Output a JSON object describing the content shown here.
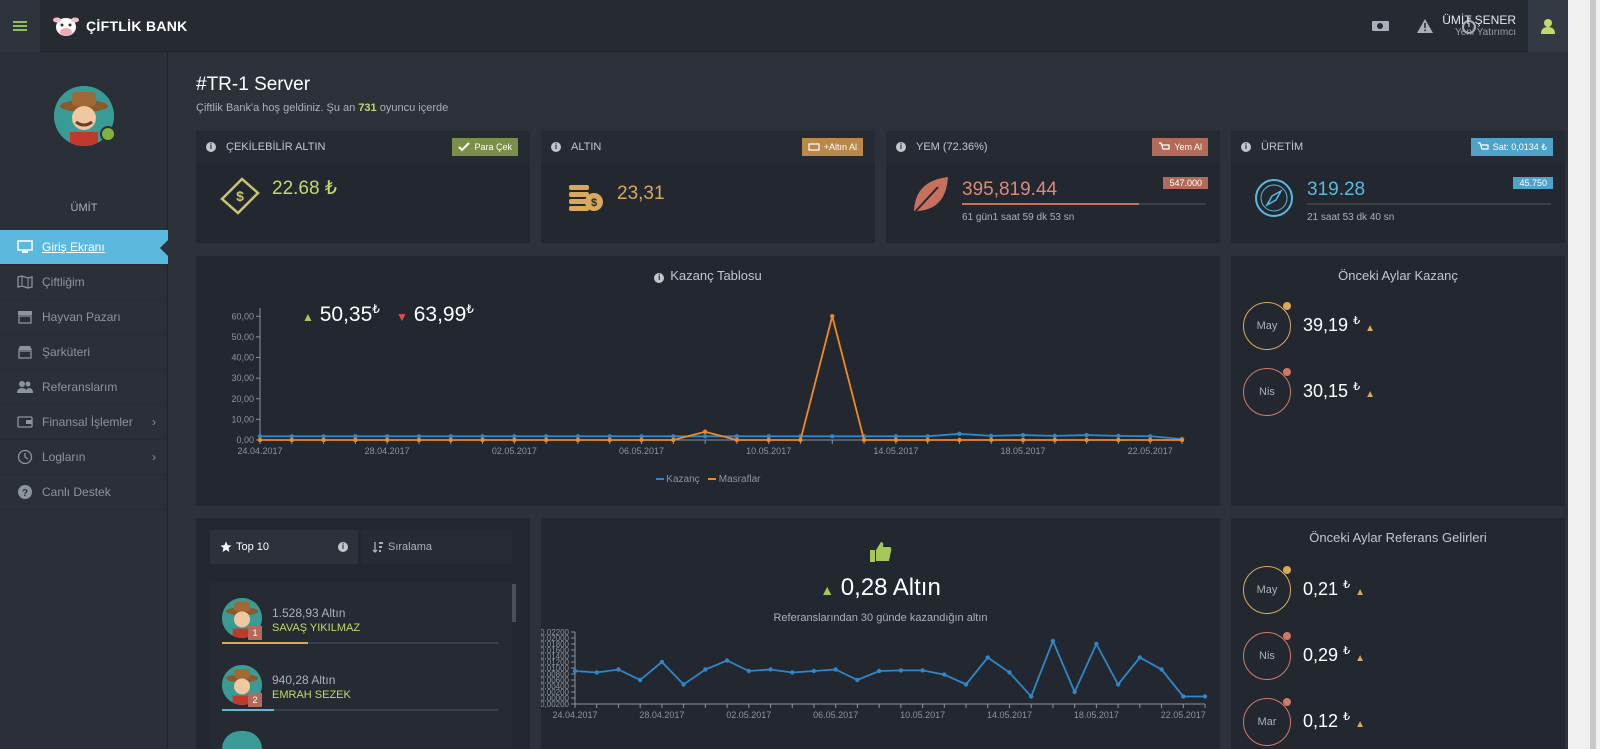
{
  "brand": {
    "name": "ÇİFTLİK BANK"
  },
  "topbar": {
    "icons": [
      "money-icon",
      "warning-icon",
      "stopwatch-icon"
    ],
    "user_name": "ÜMİT ŞENER",
    "user_role": "Yeni Yatırımcı"
  },
  "sidebar": {
    "user": "ÜMİT",
    "items": [
      {
        "label": "Giriş Ekranı",
        "icon": "monitor-icon"
      },
      {
        "label": "Çiftliğim",
        "icon": "map-icon"
      },
      {
        "label": "Hayvan Pazarı",
        "icon": "shop-icon"
      },
      {
        "label": "Şarküteri",
        "icon": "store-icon"
      },
      {
        "label": "Referanslarım",
        "icon": "users-icon"
      },
      {
        "label": "Finansal İşlemler",
        "icon": "wallet-icon"
      },
      {
        "label": "Logların",
        "icon": "clock-icon"
      },
      {
        "label": "Canlı Destek",
        "icon": "help-icon"
      }
    ]
  },
  "page": {
    "title": "#TR-1 Server",
    "subtitle_pre": "Çiftlik Bank'a hoş geldiniz. Şu an ",
    "online_count": "731",
    "subtitle_post": " oyuncu içerde"
  },
  "cards": {
    "cekilebilir": {
      "title": "ÇEKİLEBİLİR ALTIN",
      "button": "Para Çek",
      "value": "22.68",
      "currency": "₺"
    },
    "altin": {
      "title": "ALTIN",
      "button": "+Altın Al",
      "value": "23,31"
    },
    "yem": {
      "title": "YEM (72.36%)",
      "button": "Yem Al",
      "value": "395,819.44",
      "badge": "547.000",
      "sub": "61 gün1 saat 59 dk 53 sn",
      "progress": 0.7236
    },
    "uretim": {
      "title": "ÜRETİM",
      "button": "Sat: 0,0134 ₺",
      "value": "319.28",
      "badge": "45.750",
      "sub": "21 saat 53 dk 40 sn",
      "progress": 0.0
    }
  },
  "kazanc": {
    "title": "Kazanç Tablosu",
    "up_value": "50,35",
    "down_value": "63,99",
    "currency": "₺",
    "legend": [
      "Kazanç",
      "Masraflar"
    ]
  },
  "onceki_kazanc": {
    "title": "Önceki Aylar Kazanç",
    "rows": [
      {
        "month": "May",
        "value": "39,19",
        "color": "#d9a95b"
      },
      {
        "month": "Nis",
        "value": "30,15",
        "color": "#d07a66"
      }
    ]
  },
  "top10": {
    "tab1": "Top 10",
    "tab2": "Sıralama",
    "rows": [
      {
        "amount": "1.528,93 Altın",
        "name": "SAVAŞ YIKILMAZ",
        "rank": "1",
        "share": 0.31,
        "color": "#d9a95b"
      },
      {
        "amount": "940,28 Altın",
        "name": "EMRAH SEZEK",
        "rank": "2",
        "share": 0.19,
        "color": "#5bb8df"
      }
    ]
  },
  "referans": {
    "value": "0,28 Altın",
    "sub": "Referanslarından 30 günde kazandığın altın"
  },
  "onceki_referans": {
    "title": "Önceki Aylar Referans Gelirleri",
    "rows": [
      {
        "month": "May",
        "value": "0,21",
        "color": "#d9a95b"
      },
      {
        "month": "Nis",
        "value": "0,29",
        "color": "#d07a66"
      },
      {
        "month": "Mar",
        "value": "0,12",
        "color": "#d07a66"
      }
    ]
  },
  "chart_data": [
    {
      "type": "line",
      "x": [
        "24.04.2017",
        "25.04.2017",
        "26.04.2017",
        "27.04.2017",
        "28.04.2017",
        "29.04.2017",
        "30.04.2017",
        "01.05.2017",
        "02.05.2017",
        "03.05.2017",
        "04.05.2017",
        "05.05.2017",
        "06.05.2017",
        "07.05.2017",
        "08.05.2017",
        "09.05.2017",
        "10.05.2017",
        "11.05.2017",
        "12.05.2017",
        "13.05.2017",
        "14.05.2017",
        "15.05.2017",
        "16.05.2017",
        "17.05.2017",
        "18.05.2017",
        "19.05.2017",
        "20.05.2017",
        "21.05.2017",
        "22.05.2017",
        "23.05.2017"
      ],
      "xticks": [
        "24.04.2017",
        "28.04.2017",
        "02.05.2017",
        "06.05.2017",
        "10.05.2017",
        "14.05.2017",
        "18.05.2017",
        "22.05.2017"
      ],
      "series": [
        {
          "name": "Kazanç",
          "color": "#2f86c8",
          "values": [
            1.8,
            1.8,
            1.8,
            1.8,
            1.8,
            1.8,
            1.8,
            1.8,
            1.8,
            1.8,
            1.8,
            1.8,
            1.8,
            1.8,
            1.8,
            1.8,
            1.8,
            1.8,
            1.8,
            1.8,
            1.8,
            1.8,
            3,
            2,
            2.4,
            2,
            2.4,
            2,
            1.8,
            0.5
          ]
        },
        {
          "name": "Masraflar",
          "color": "#f08a24",
          "values": [
            0,
            0,
            0,
            0,
            0,
            0,
            0,
            0,
            0,
            0,
            0,
            0,
            0,
            0,
            4,
            0,
            0,
            0,
            60,
            0,
            0,
            0,
            0,
            0,
            0,
            0,
            0,
            0,
            0,
            0
          ]
        }
      ],
      "yticks": [
        "0,00",
        "10,00",
        "20,00",
        "30,00",
        "40,00",
        "50,00",
        "60,00"
      ],
      "ylim": [
        0,
        64
      ]
    },
    {
      "type": "line",
      "x": [
        "24.04.2017",
        "25.04.2017",
        "26.04.2017",
        "27.04.2017",
        "28.04.2017",
        "29.04.2017",
        "30.04.2017",
        "01.05.2017",
        "02.05.2017",
        "03.05.2017",
        "04.05.2017",
        "05.05.2017",
        "06.05.2017",
        "07.05.2017",
        "08.05.2017",
        "09.05.2017",
        "10.05.2017",
        "11.05.2017",
        "12.05.2017",
        "13.05.2017",
        "14.05.2017",
        "15.05.2017",
        "16.05.2017",
        "17.05.2017",
        "18.05.2017",
        "19.05.2017",
        "20.05.2017",
        "21.05.2017",
        "22.05.2017",
        "23.05.2017"
      ],
      "xticks": [
        "24.04.2017",
        "28.04.2017",
        "02.05.2017",
        "06.05.2017",
        "10.05.2017",
        "14.05.2017",
        "18.05.2017",
        "22.05.2017"
      ],
      "series": [
        {
          "name": "Referans",
          "color": "#2f86c8",
          "values": [
            0.009,
            0.0085,
            0.0095,
            0.006,
            0.012,
            0.0045,
            0.0095,
            0.0125,
            0.009,
            0.0095,
            0.0085,
            0.009,
            0.0095,
            0.006,
            0.009,
            0.0092,
            0.0092,
            0.0078,
            0.0045,
            0.0135,
            0.0085,
            0.0005,
            0.019,
            0.002,
            0.018,
            0.0045,
            0.0135,
            0.0095,
            0.0005,
            0.0005
          ]
        }
      ],
      "yticks": [
        "-0,00200",
        "0,00000",
        "0,00200",
        "0,00400",
        "0,00600",
        "0,00800",
        "0,01000",
        "0,01200",
        "0,01400",
        "0,01600",
        "0,01800",
        "0,02000",
        "0,02200"
      ],
      "ylim": [
        -0.002,
        0.022
      ]
    }
  ]
}
